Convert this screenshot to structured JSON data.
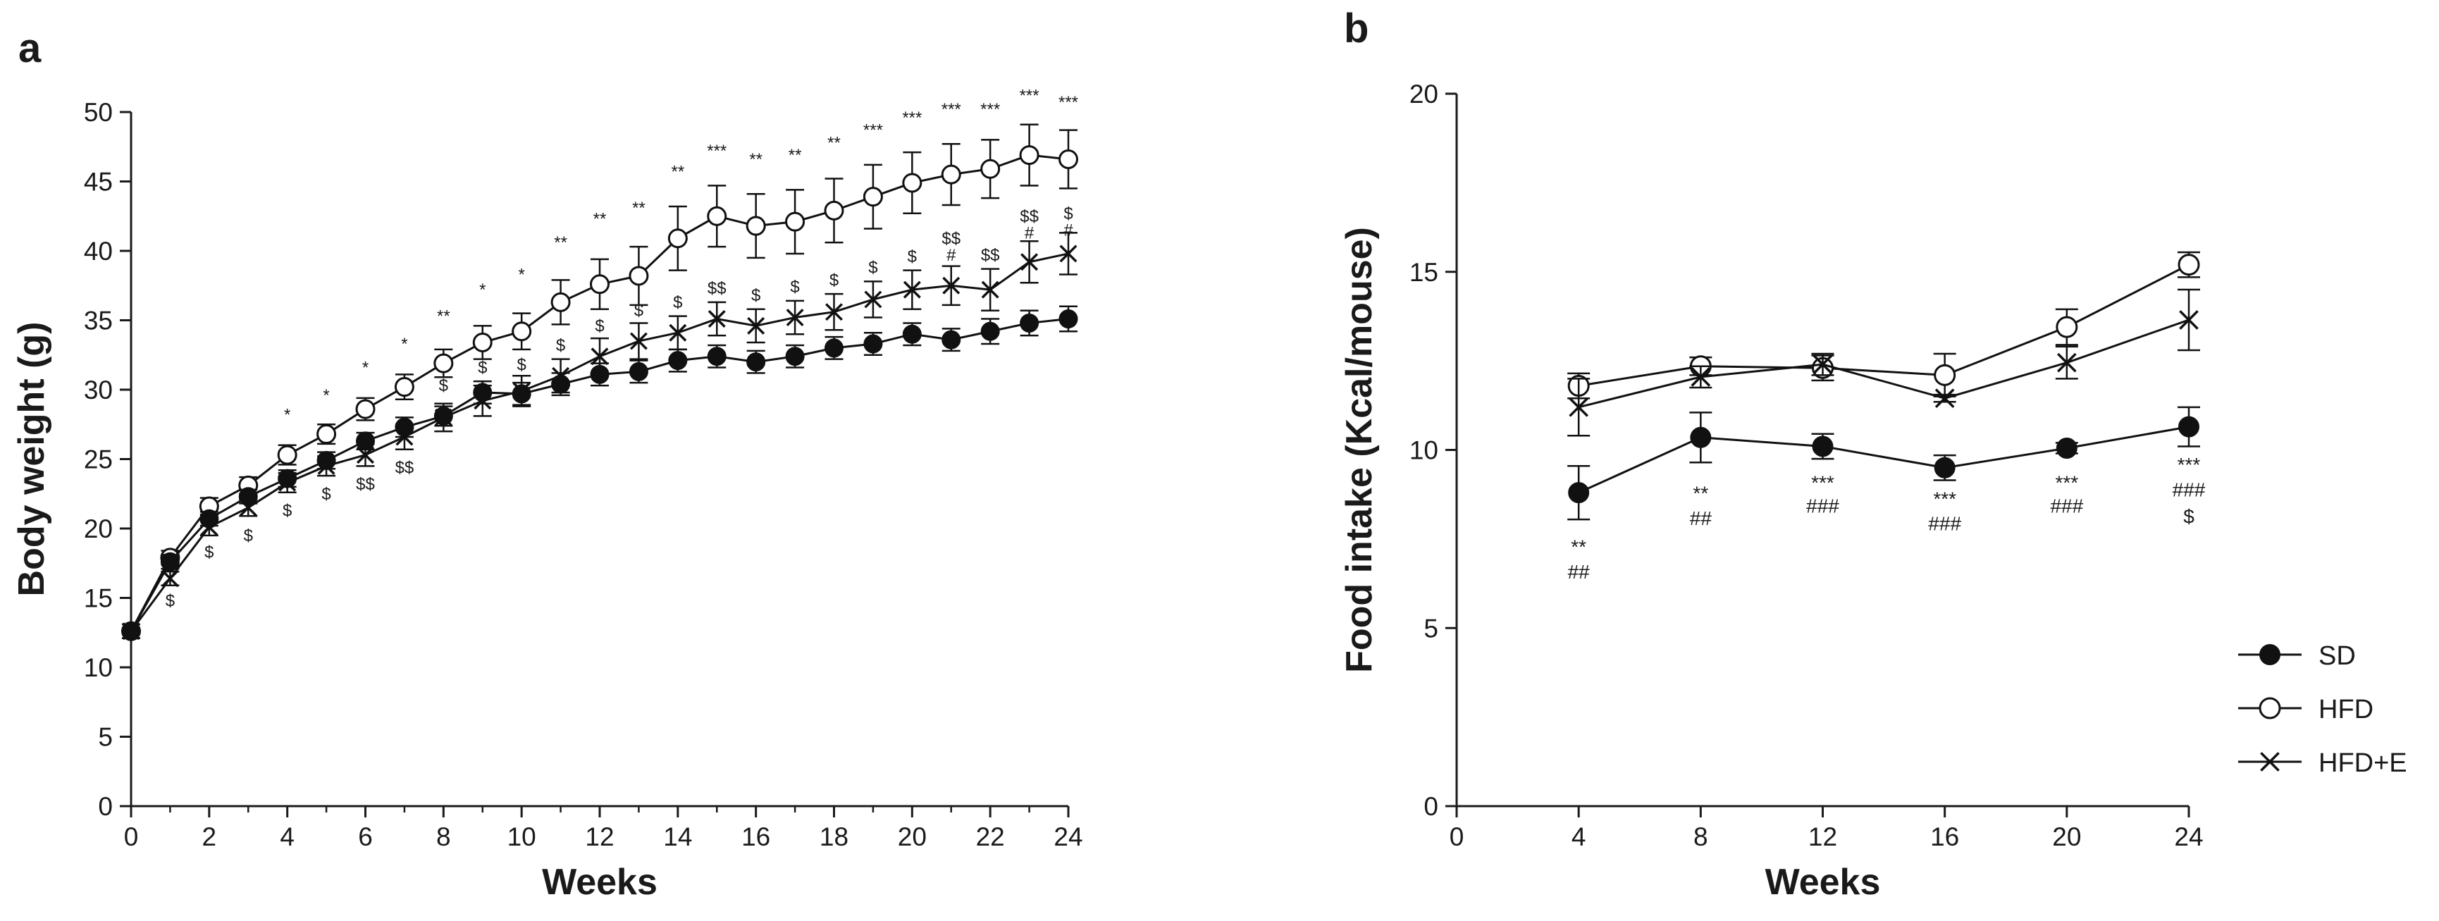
{
  "chart_data": [
    {
      "panel_label": "a",
      "type": "line",
      "xlabel": "Weeks",
      "ylabel": "Body weight (g)",
      "xlim": [
        0,
        24
      ],
      "ylim": [
        0,
        50
      ],
      "xticks": [
        0,
        2,
        4,
        6,
        8,
        10,
        12,
        14,
        16,
        18,
        20,
        22,
        24
      ],
      "yticks": [
        0,
        5,
        10,
        15,
        20,
        25,
        30,
        35,
        40,
        45,
        50
      ],
      "x": [
        0,
        1,
        2,
        3,
        4,
        5,
        6,
        7,
        8,
        9,
        10,
        11,
        12,
        13,
        14,
        15,
        16,
        17,
        18,
        19,
        20,
        21,
        22,
        23,
        24
      ],
      "series": [
        {
          "name": "SD",
          "marker": "filled-circle",
          "values": [
            12.6,
            17.6,
            20.7,
            22.3,
            23.6,
            24.9,
            26.3,
            27.3,
            28.1,
            29.8,
            29.7,
            30.4,
            31.1,
            31.3,
            32.1,
            32.4,
            32.0,
            32.4,
            33.0,
            33.3,
            34.0,
            33.6,
            34.2,
            34.8,
            35.1
          ],
          "errors": [
            0.5,
            0.5,
            0.5,
            0.5,
            0.6,
            0.6,
            0.6,
            0.7,
            0.7,
            0.8,
            0.8,
            0.8,
            0.8,
            0.8,
            0.8,
            0.8,
            0.8,
            0.8,
            0.8,
            0.8,
            0.8,
            0.8,
            0.9,
            0.9,
            0.9
          ]
        },
        {
          "name": "HFD",
          "marker": "open-circle",
          "values": [
            12.6,
            17.9,
            21.6,
            23.1,
            25.3,
            26.8,
            28.6,
            30.2,
            31.9,
            33.4,
            34.2,
            36.3,
            37.6,
            38.2,
            40.9,
            42.5,
            41.8,
            42.1,
            42.9,
            43.9,
            44.9,
            45.5,
            45.9,
            46.9,
            46.6
          ],
          "errors": [
            0.5,
            0.5,
            0.6,
            0.6,
            0.7,
            0.7,
            0.8,
            0.9,
            1.0,
            1.2,
            1.3,
            1.6,
            1.8,
            2.1,
            2.3,
            2.2,
            2.3,
            2.3,
            2.3,
            2.3,
            2.2,
            2.2,
            2.1,
            2.2,
            2.1
          ]
        },
        {
          "name": "HFD+E",
          "marker": "cross",
          "values": [
            12.6,
            16.4,
            20.1,
            21.5,
            23.3,
            24.5,
            25.3,
            26.6,
            28.0,
            29.2,
            29.9,
            31.0,
            32.4,
            33.5,
            34.1,
            35.1,
            34.6,
            35.2,
            35.6,
            36.5,
            37.2,
            37.5,
            37.2,
            39.2,
            39.8
          ],
          "errors": [
            0.5,
            0.5,
            0.6,
            0.6,
            0.7,
            0.7,
            0.8,
            0.9,
            1.0,
            1.1,
            1.1,
            1.2,
            1.3,
            1.3,
            1.2,
            1.2,
            1.2,
            1.2,
            1.3,
            1.3,
            1.4,
            1.4,
            1.5,
            1.5,
            1.5
          ]
        }
      ],
      "annotations": [
        {
          "x": 4,
          "y": 28.2,
          "text": "*"
        },
        {
          "x": 5,
          "y": 29.6,
          "text": "*"
        },
        {
          "x": 6,
          "y": 31.6,
          "text": "*"
        },
        {
          "x": 7,
          "y": 33.3,
          "text": "*"
        },
        {
          "x": 8,
          "y": 35.3,
          "text": "**"
        },
        {
          "x": 9,
          "y": 37.2,
          "text": "*"
        },
        {
          "x": 10,
          "y": 38.3,
          "text": "*"
        },
        {
          "x": 11,
          "y": 40.6,
          "text": "**"
        },
        {
          "x": 12,
          "y": 42.3,
          "text": "**"
        },
        {
          "x": 13,
          "y": 43.1,
          "text": "**"
        },
        {
          "x": 14,
          "y": 45.7,
          "text": "**"
        },
        {
          "x": 15,
          "y": 47.2,
          "text": "***"
        },
        {
          "x": 16,
          "y": 46.6,
          "text": "**"
        },
        {
          "x": 17,
          "y": 46.9,
          "text": "**"
        },
        {
          "x": 18,
          "y": 47.8,
          "text": "**"
        },
        {
          "x": 19,
          "y": 48.7,
          "text": "***"
        },
        {
          "x": 20,
          "y": 49.6,
          "text": "***"
        },
        {
          "x": 21,
          "y": 50.2,
          "text": "***"
        },
        {
          "x": 22,
          "y": 50.2,
          "text": "***"
        },
        {
          "x": 23,
          "y": 51.2,
          "text": "***"
        },
        {
          "x": 24,
          "y": 50.7,
          "text": "***"
        },
        {
          "x": 1,
          "y": 14.8,
          "text": "$"
        },
        {
          "x": 2,
          "y": 18.3,
          "text": "$"
        },
        {
          "x": 3,
          "y": 19.5,
          "text": "$"
        },
        {
          "x": 4,
          "y": 21.3,
          "text": "$"
        },
        {
          "x": 5,
          "y": 22.5,
          "text": "$"
        },
        {
          "x": 6,
          "y": 23.2,
          "text": "$$"
        },
        {
          "x": 7,
          "y": 24.4,
          "text": "$$"
        },
        {
          "x": 8,
          "y": 30.3,
          "text": "$"
        },
        {
          "x": 9,
          "y": 31.6,
          "text": "$"
        },
        {
          "x": 10,
          "y": 31.8,
          "text": "$"
        },
        {
          "x": 11,
          "y": 33.2,
          "text": "$"
        },
        {
          "x": 12,
          "y": 34.6,
          "text": "$"
        },
        {
          "x": 13,
          "y": 35.7,
          "text": "$"
        },
        {
          "x": 14,
          "y": 36.3,
          "text": "$"
        },
        {
          "x": 15,
          "y": 37.3,
          "text": "$$"
        },
        {
          "x": 16,
          "y": 36.8,
          "text": "$"
        },
        {
          "x": 17,
          "y": 37.4,
          "text": "$"
        },
        {
          "x": 18,
          "y": 37.9,
          "text": "$"
        },
        {
          "x": 19,
          "y": 38.8,
          "text": "$"
        },
        {
          "x": 20,
          "y": 39.6,
          "text": "$"
        },
        {
          "x": 21,
          "y": 40.9,
          "text": "$$"
        },
        {
          "x": 21,
          "y": 39.7,
          "text": "#"
        },
        {
          "x": 22,
          "y": 39.7,
          "text": "$$"
        },
        {
          "x": 23,
          "y": 42.5,
          "text": "$$"
        },
        {
          "x": 23,
          "y": 41.3,
          "text": "#"
        },
        {
          "x": 24,
          "y": 42.7,
          "text": "$"
        },
        {
          "x": 24,
          "y": 41.5,
          "text": "#"
        }
      ]
    },
    {
      "panel_label": "b",
      "type": "line",
      "xlabel": "Weeks",
      "ylabel": "Food intake (Kcal/mouse)",
      "xlim": [
        0,
        24
      ],
      "ylim": [
        0,
        20
      ],
      "xticks": [
        0,
        4,
        8,
        12,
        16,
        20,
        24
      ],
      "yticks": [
        0,
        5,
        10,
        15,
        20
      ],
      "x": [
        4,
        8,
        12,
        16,
        20,
        24
      ],
      "series": [
        {
          "name": "SD",
          "marker": "filled-circle",
          "values": [
            8.8,
            10.35,
            10.1,
            9.5,
            10.05,
            10.65
          ],
          "errors": [
            0.75,
            0.7,
            0.35,
            0.35,
            0.15,
            0.55
          ]
        },
        {
          "name": "HFD",
          "marker": "open-circle",
          "values": [
            11.8,
            12.35,
            12.3,
            12.1,
            13.45,
            15.2
          ],
          "errors": [
            0.35,
            0.25,
            0.35,
            0.6,
            0.5,
            0.35
          ]
        },
        {
          "name": "HFD+E",
          "marker": "cross",
          "values": [
            11.2,
            12.05,
            12.4,
            11.45,
            12.45,
            13.65
          ],
          "errors": [
            0.8,
            0.3,
            0.3,
            0.1,
            0.45,
            0.85
          ]
        }
      ],
      "annotations": [
        {
          "x": 4,
          "y": 7.25,
          "text": "**"
        },
        {
          "x": 4,
          "y": 6.55,
          "text": "##"
        },
        {
          "x": 8,
          "y": 8.75,
          "text": "**"
        },
        {
          "x": 8,
          "y": 8.05,
          "text": "##"
        },
        {
          "x": 12,
          "y": 9.05,
          "text": "***"
        },
        {
          "x": 12,
          "y": 8.4,
          "text": "###"
        },
        {
          "x": 16,
          "y": 8.6,
          "text": "***"
        },
        {
          "x": 16,
          "y": 7.9,
          "text": "###"
        },
        {
          "x": 20,
          "y": 9.05,
          "text": "***"
        },
        {
          "x": 20,
          "y": 8.4,
          "text": "###"
        },
        {
          "x": 24,
          "y": 9.55,
          "text": "***"
        },
        {
          "x": 24,
          "y": 8.85,
          "text": "###"
        },
        {
          "x": 24,
          "y": 8.1,
          "text": "$"
        }
      ],
      "legend": {
        "placement": "right-bottom",
        "entries": [
          "SD",
          "HFD",
          "HFD+E"
        ]
      }
    }
  ]
}
